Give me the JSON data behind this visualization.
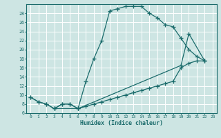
{
  "xlabel": "Humidex (Indice chaleur)",
  "bg_color": "#cde5e3",
  "line_color": "#1a6b6b",
  "grid_color": "#ffffff",
  "xlim": [
    -0.5,
    23.5
  ],
  "ylim": [
    6,
    30
  ],
  "yticks": [
    6,
    8,
    10,
    12,
    14,
    16,
    18,
    20,
    22,
    24,
    26,
    28
  ],
  "xticks": [
    0,
    1,
    2,
    3,
    4,
    5,
    6,
    7,
    8,
    9,
    10,
    11,
    12,
    13,
    14,
    15,
    16,
    17,
    18,
    19,
    20,
    21,
    22,
    23
  ],
  "line1_x": [
    0,
    1,
    2,
    3,
    4,
    5,
    6,
    7,
    8,
    9,
    10,
    11,
    12,
    13,
    14,
    15,
    16,
    17,
    18,
    19,
    20,
    21,
    22
  ],
  "line1_y": [
    9.5,
    8.5,
    8.0,
    7.0,
    8.0,
    8.0,
    7.0,
    13.0,
    18.0,
    22.0,
    28.5,
    29.0,
    29.5,
    29.5,
    29.5,
    28.0,
    27.0,
    25.5,
    25.0,
    22.5,
    20.0,
    18.5,
    17.5
  ],
  "line2_x": [
    0,
    1,
    2,
    3,
    4,
    5,
    6,
    7,
    8,
    9,
    10,
    11,
    12,
    13,
    14,
    15,
    16,
    17,
    18,
    19,
    20,
    21,
    22
  ],
  "line2_y": [
    9.5,
    8.5,
    8.0,
    7.0,
    8.0,
    8.0,
    7.0,
    7.5,
    8.0,
    8.5,
    9.0,
    9.5,
    10.0,
    10.5,
    11.0,
    11.5,
    12.0,
    12.5,
    13.0,
    16.0,
    17.0,
    17.5,
    17.5
  ],
  "line3_x": [
    3,
    6,
    19,
    20,
    22
  ],
  "line3_y": [
    7.0,
    7.0,
    16.5,
    23.5,
    17.5
  ],
  "markersize": 3.0,
  "linewidth": 0.9,
  "tick_fontsize": 4.5,
  "xlabel_fontsize": 6.0
}
